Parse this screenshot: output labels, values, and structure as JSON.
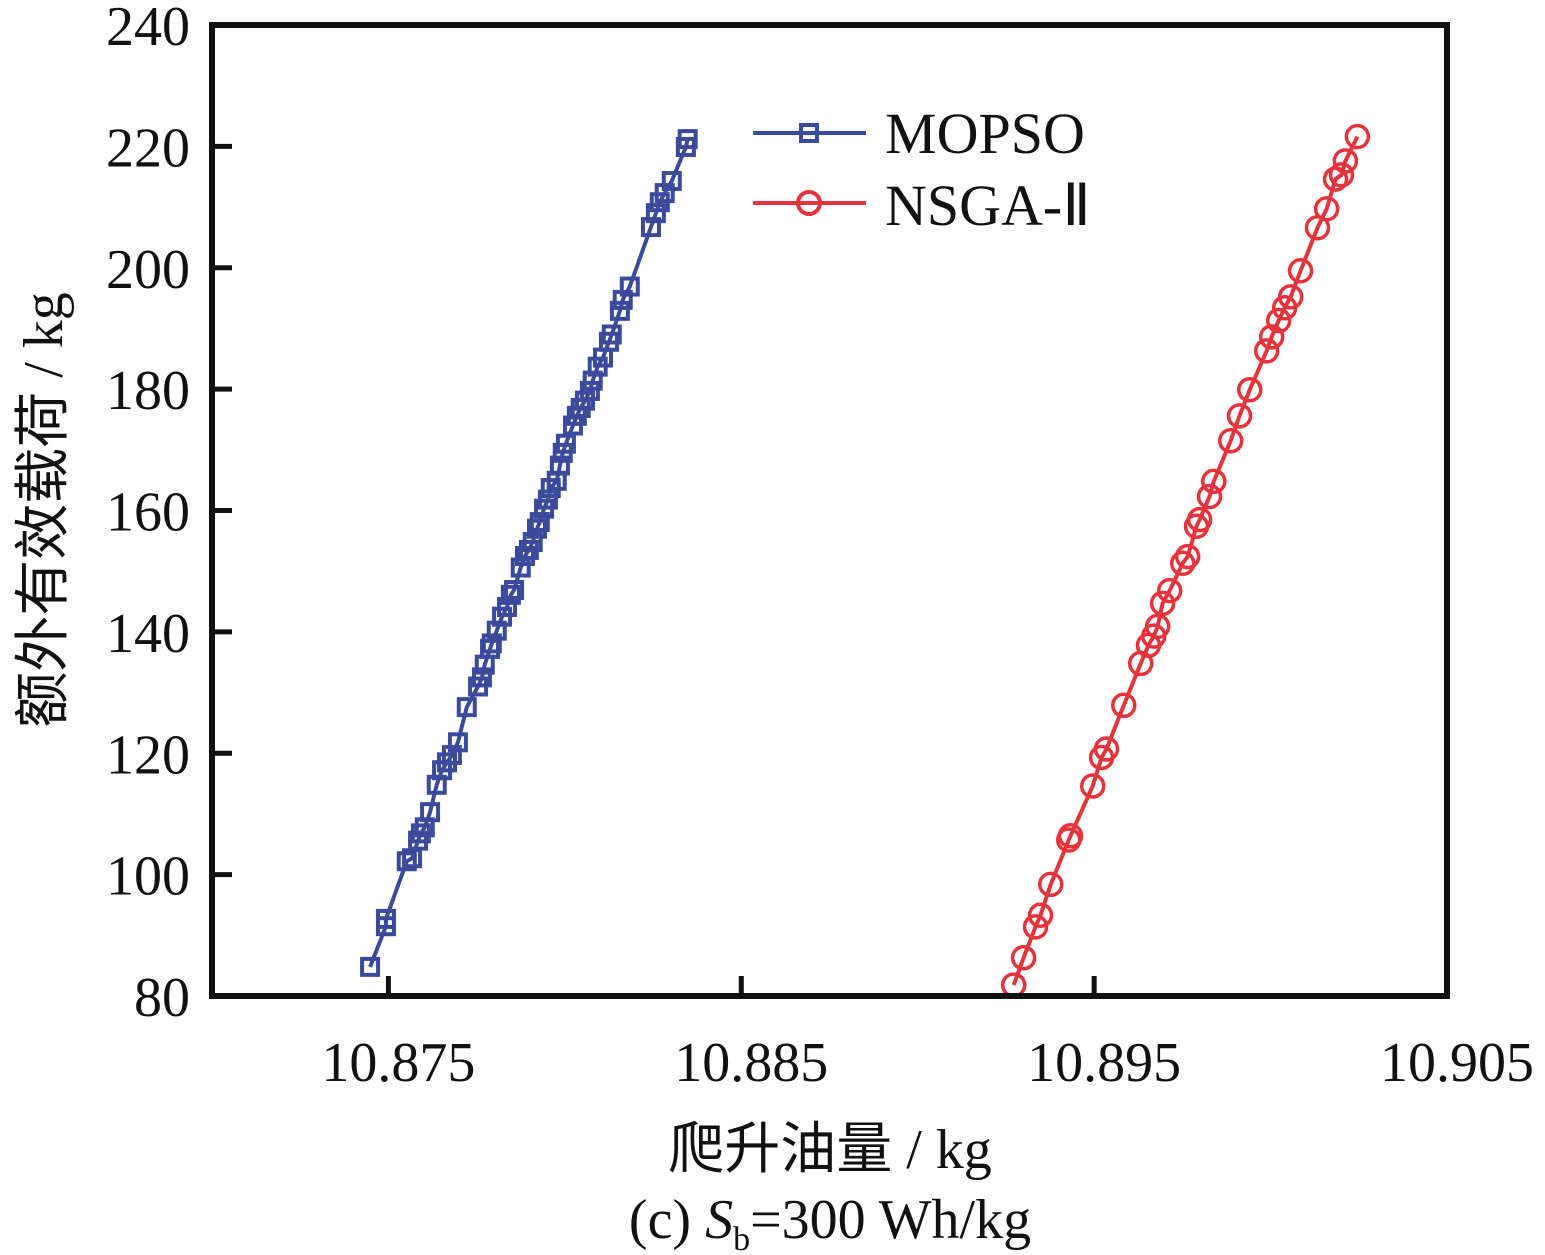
{
  "chart_data": {
    "type": "line",
    "title": "",
    "caption": {
      "prefix": "(c) ",
      "var": "S",
      "sub": "b",
      "suffix": "=300 Wh/kg"
    },
    "xlabel": "爬升油量 / kg",
    "ylabel": "额外有效载荷 / kg",
    "xlim": [
      10.87,
      10.905
    ],
    "ylim": [
      80,
      240
    ],
    "xticks": [
      10.875,
      10.885,
      10.895,
      10.905
    ],
    "xtick_labels": [
      "10.875",
      "10.885",
      "10.895",
      "10.905"
    ],
    "yticks": [
      80,
      100,
      120,
      140,
      160,
      180,
      200,
      220,
      240
    ],
    "ytick_labels": [
      "80",
      "100",
      "120",
      "140",
      "160",
      "180",
      "200",
      "220",
      "240"
    ],
    "grid": false,
    "legend_position": "top-center",
    "series": [
      {
        "name": "MOPSO",
        "color": "#3b4a9c",
        "marker": "square",
        "points": [
          [
            10.87448,
            84.8
          ],
          [
            10.87493,
            91.5
          ],
          [
            10.87493,
            92.7
          ],
          [
            10.87552,
            102.2
          ],
          [
            10.87567,
            102.7
          ],
          [
            10.87584,
            105.6
          ],
          [
            10.87592,
            106.8
          ],
          [
            10.87603,
            107.8
          ],
          [
            10.87618,
            110.3
          ],
          [
            10.87637,
            114.8
          ],
          [
            10.87652,
            117.2
          ],
          [
            10.87666,
            118.5
          ],
          [
            10.8768,
            119.7
          ],
          [
            10.87697,
            121.8
          ],
          [
            10.87722,
            127.6
          ],
          [
            10.87754,
            131.0
          ],
          [
            10.87765,
            132.5
          ],
          [
            10.87773,
            134.6
          ],
          [
            10.87788,
            137.2
          ],
          [
            10.87793,
            138.1
          ],
          [
            10.87807,
            140.2
          ],
          [
            10.87822,
            142.5
          ],
          [
            10.87836,
            144.1
          ],
          [
            10.87847,
            146.1
          ],
          [
            10.87856,
            146.9
          ],
          [
            10.87875,
            150.6
          ],
          [
            10.87887,
            152.5
          ],
          [
            10.87898,
            153.5
          ],
          [
            10.87909,
            154.8
          ],
          [
            10.87921,
            157.0
          ],
          [
            10.87929,
            158.1
          ],
          [
            10.87941,
            160.3
          ],
          [
            10.87952,
            161.8
          ],
          [
            10.8796,
            163.7
          ],
          [
            10.87977,
            164.9
          ],
          [
            10.87986,
            167.4
          ],
          [
            10.87994,
            169.5
          ],
          [
            10.88003,
            171.0
          ],
          [
            10.88023,
            174.0
          ],
          [
            10.88034,
            175.6
          ],
          [
            10.88045,
            176.9
          ],
          [
            10.88057,
            178.1
          ],
          [
            10.88071,
            179.7
          ],
          [
            10.88079,
            181.4
          ],
          [
            10.88093,
            183.7
          ],
          [
            10.88108,
            185.2
          ],
          [
            10.88125,
            187.8
          ],
          [
            10.88133,
            189.0
          ],
          [
            10.88156,
            192.9
          ],
          [
            10.88164,
            194.7
          ],
          [
            10.88184,
            196.9
          ],
          [
            10.88244,
            206.7
          ],
          [
            10.88258,
            209.0
          ],
          [
            10.88269,
            210.8
          ],
          [
            10.88283,
            212.3
          ],
          [
            10.88303,
            214.3
          ],
          [
            10.88343,
            219.9
          ],
          [
            10.88348,
            221.2
          ]
        ]
      },
      {
        "name": "NSGA-Ⅱ",
        "color": "#e6323a",
        "marker": "circle",
        "points": [
          [
            10.89272,
            81.8
          ],
          [
            10.893,
            86.3
          ],
          [
            10.89334,
            91.4
          ],
          [
            10.89348,
            93.3
          ],
          [
            10.89377,
            98.4
          ],
          [
            10.89428,
            105.7
          ],
          [
            10.89433,
            106.4
          ],
          [
            10.89496,
            114.6
          ],
          [
            10.89521,
            119.3
          ],
          [
            10.89535,
            120.7
          ],
          [
            10.89584,
            127.9
          ],
          [
            10.89632,
            134.8
          ],
          [
            10.89654,
            137.8
          ],
          [
            10.89669,
            139.3
          ],
          [
            10.8968,
            140.9
          ],
          [
            10.89694,
            144.7
          ],
          [
            10.89714,
            146.8
          ],
          [
            10.89751,
            151.3
          ],
          [
            10.89765,
            152.4
          ],
          [
            10.8979,
            157.4
          ],
          [
            10.89799,
            158.5
          ],
          [
            10.89827,
            162.3
          ],
          [
            10.89839,
            164.8
          ],
          [
            10.89887,
            171.5
          ],
          [
            10.89912,
            175.6
          ],
          [
            10.89941,
            179.9
          ],
          [
            10.89989,
            186.3
          ],
          [
            10.90003,
            188.6
          ],
          [
            10.90023,
            191.3
          ],
          [
            10.9004,
            193.4
          ],
          [
            10.90057,
            195.2
          ],
          [
            10.90085,
            199.5
          ],
          [
            10.90133,
            206.6
          ],
          [
            10.90159,
            209.7
          ],
          [
            10.90184,
            214.6
          ],
          [
            10.90201,
            215.3
          ],
          [
            10.90212,
            217.6
          ],
          [
            10.90246,
            221.6
          ]
        ]
      }
    ]
  }
}
